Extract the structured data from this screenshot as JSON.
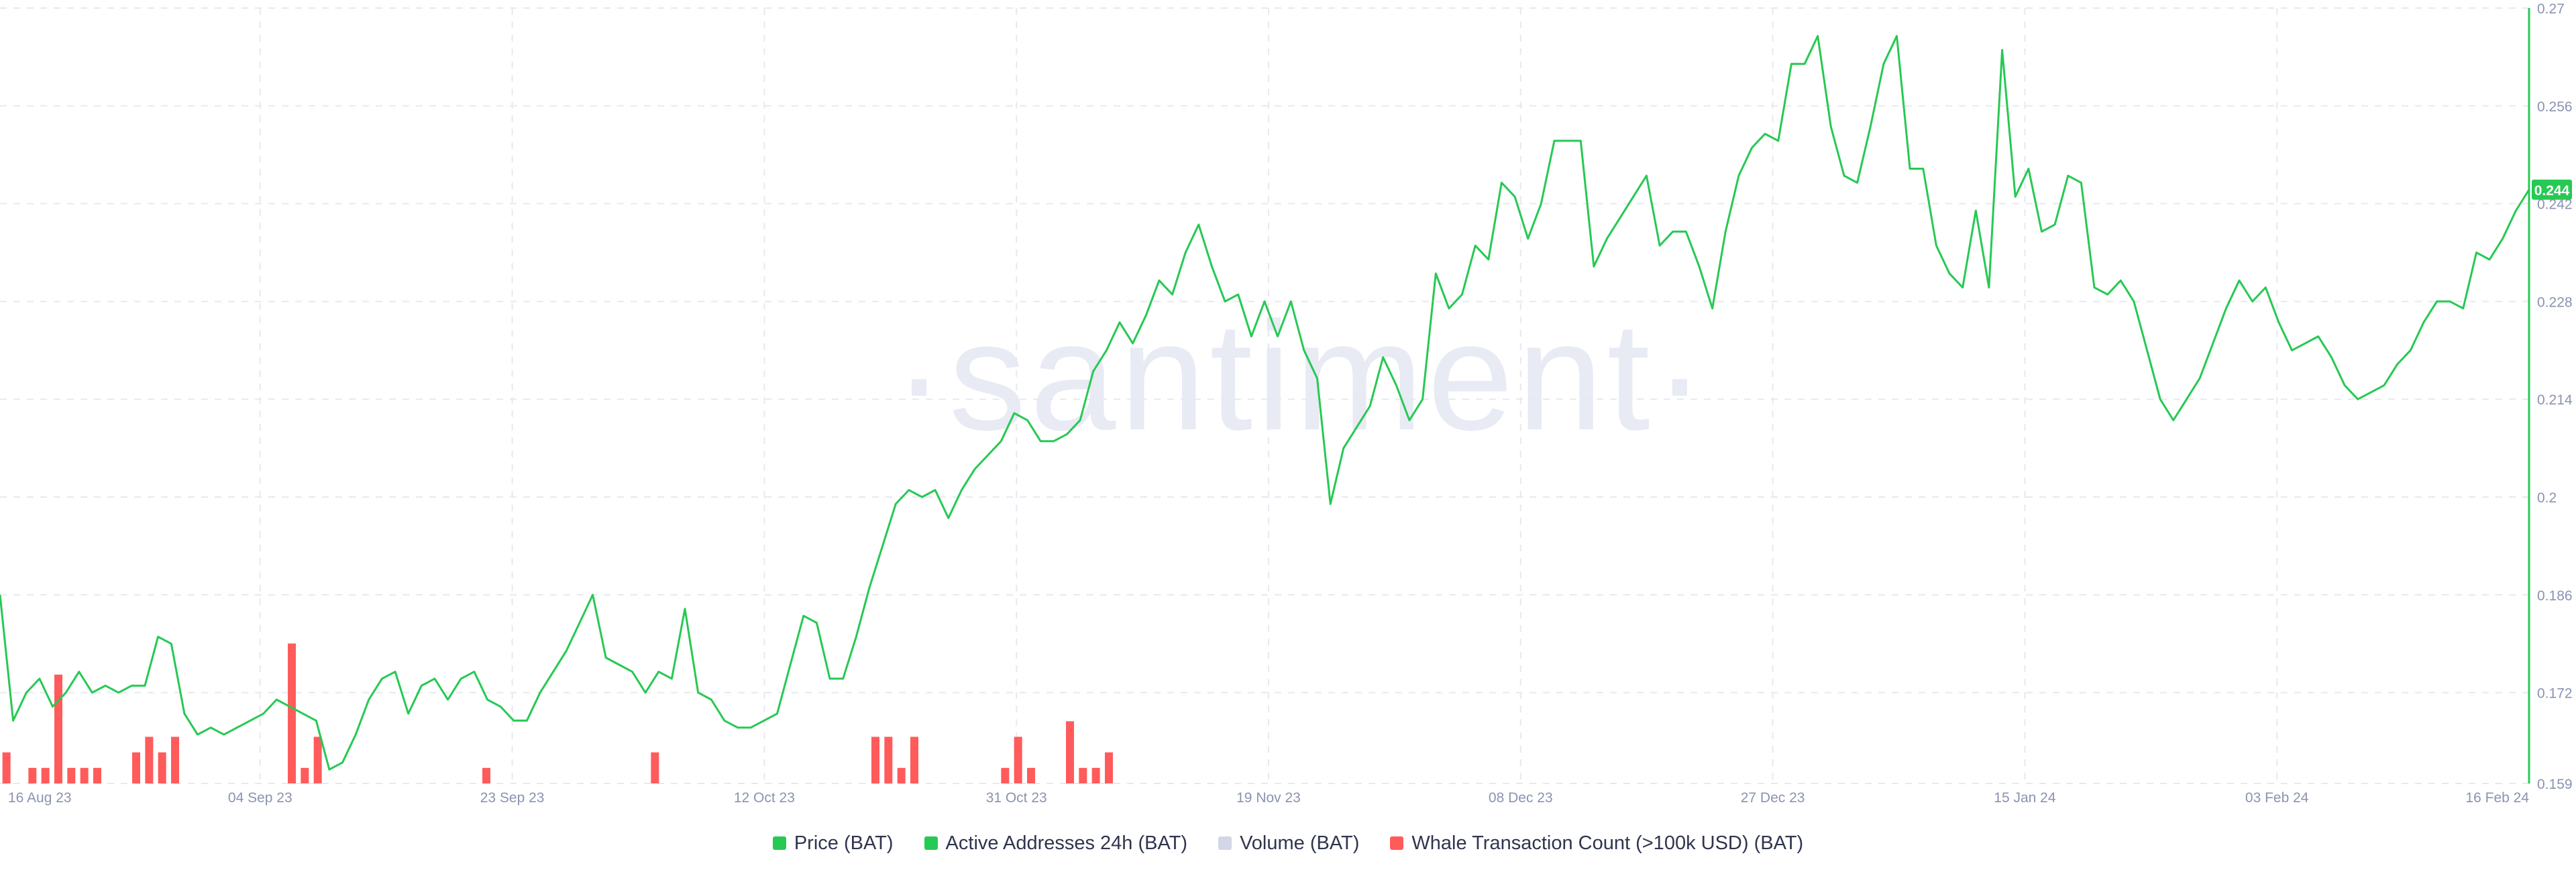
{
  "watermark": "·santiment·",
  "colors": {
    "price": "#26c953",
    "whale": "#ff5b5b",
    "volume": "#d2d6e7",
    "active": "#26c953",
    "grid": "#e7e9f0",
    "axis_text": "#8a93b0",
    "last_price_bg": "#26c953"
  },
  "legend": [
    {
      "label": "Price (BAT)",
      "color": "#26c953"
    },
    {
      "label": "Active Addresses 24h (BAT)",
      "color": "#26c953"
    },
    {
      "label": "Volume (BAT)",
      "color": "#d2d6e7"
    },
    {
      "label": "Whale Transaction Count (>100k USD) (BAT)",
      "color": "#ff5b5b"
    }
  ],
  "last_price_label": "0.244",
  "chart_data": {
    "type": "bar+line",
    "x_range": [
      "2023-08-16",
      "2024-02-16"
    ],
    "x_tick_labels": [
      "16 Aug 23",
      "04 Sep 23",
      "23 Sep 23",
      "12 Oct 23",
      "31 Oct 23",
      "19 Nov 23",
      "08 Dec 23",
      "27 Dec 23",
      "15 Jan 24",
      "03 Feb 24",
      "16 Feb 24"
    ],
    "y_right": {
      "series": "Price (BAT)",
      "range": [
        0.159,
        0.27
      ],
      "tick_labels": [
        "0.159",
        "0.172",
        "0.186",
        "0.2",
        "0.214",
        "0.228",
        "0.242",
        "0.256",
        "0.27"
      ]
    },
    "grid": true,
    "legend_position": "bottom-center",
    "series": [
      {
        "name": "Price (BAT)",
        "kind": "line",
        "axis": "right",
        "values": [
          0.186,
          0.168,
          0.172,
          0.174,
          0.17,
          0.172,
          0.175,
          0.172,
          0.173,
          0.172,
          0.173,
          0.173,
          0.18,
          0.179,
          0.169,
          0.166,
          0.167,
          0.166,
          0.167,
          0.168,
          0.169,
          0.171,
          0.17,
          0.169,
          0.168,
          0.161,
          0.162,
          0.166,
          0.171,
          0.174,
          0.175,
          0.169,
          0.173,
          0.174,
          0.171,
          0.174,
          0.175,
          0.171,
          0.17,
          0.168,
          0.168,
          0.172,
          0.175,
          0.178,
          0.182,
          0.186,
          0.177,
          0.176,
          0.175,
          0.172,
          0.175,
          0.174,
          0.184,
          0.172,
          0.171,
          0.168,
          0.167,
          0.167,
          0.168,
          0.169,
          0.176,
          0.183,
          0.182,
          0.174,
          0.174,
          0.18,
          0.187,
          0.193,
          0.199,
          0.201,
          0.2,
          0.201,
          0.197,
          0.201,
          0.204,
          0.206,
          0.208,
          0.212,
          0.211,
          0.208,
          0.208,
          0.209,
          0.211,
          0.218,
          0.221,
          0.225,
          0.222,
          0.226,
          0.231,
          0.229,
          0.235,
          0.239,
          0.233,
          0.228,
          0.229,
          0.223,
          0.228,
          0.223,
          0.228,
          0.221,
          0.217,
          0.199,
          0.207,
          0.21,
          0.213,
          0.22,
          0.216,
          0.211,
          0.214,
          0.232,
          0.227,
          0.229,
          0.236,
          0.234,
          0.245,
          0.243,
          0.237,
          0.242,
          0.251,
          0.251,
          0.251,
          0.233,
          0.237,
          0.24,
          0.243,
          0.246,
          0.236,
          0.238,
          0.238,
          0.233,
          0.227,
          0.238,
          0.246,
          0.25,
          0.252,
          0.251,
          0.262,
          0.262,
          0.266,
          0.253,
          0.246,
          0.245,
          0.253,
          0.262,
          0.266,
          0.247,
          0.247,
          0.236,
          0.232,
          0.23,
          0.241,
          0.23,
          0.264,
          0.243,
          0.247,
          0.238,
          0.239,
          0.246,
          0.245,
          0.23,
          0.229,
          0.231,
          0.228,
          0.221,
          0.214,
          0.211,
          0.214,
          0.217,
          0.222,
          0.227,
          0.231,
          0.228,
          0.23,
          0.225,
          0.221,
          0.222,
          0.223,
          0.22,
          0.216,
          0.214,
          0.215,
          0.216,
          0.219,
          0.221,
          0.225,
          0.228,
          0.228,
          0.227,
          0.235,
          0.234,
          0.237,
          0.241,
          0.244
        ]
      },
      {
        "name": "Whale Transaction Count (>100k USD) (BAT)",
        "kind": "bar",
        "axis": "left-hidden",
        "max": 49,
        "values": [
          2,
          0,
          1,
          1,
          7,
          1,
          1,
          1,
          0,
          0,
          2,
          3,
          2,
          3,
          0,
          0,
          0,
          0,
          0,
          0,
          0,
          0,
          9,
          1,
          3,
          0,
          0,
          0,
          0,
          0,
          0,
          0,
          0,
          0,
          0,
          0,
          0,
          1,
          0,
          0,
          0,
          0,
          0,
          0,
          0,
          0,
          0,
          0,
          0,
          0,
          2,
          0,
          0,
          0,
          0,
          0,
          0,
          0,
          0,
          0,
          0,
          0,
          0,
          0,
          0,
          0,
          0,
          3,
          3,
          1,
          3,
          0,
          0,
          0,
          0,
          0,
          0,
          1,
          3,
          1,
          0,
          0,
          4,
          1,
          1,
          2,
          0,
          0,
          0,
          0,
          0,
          0,
          0,
          0,
          0,
          0,
          0,
          0,
          0,
          0,
          0,
          0,
          0,
          0,
          0,
          0,
          0,
          0,
          0,
          0,
          0,
          0,
          0,
          0,
          0,
          0,
          0,
          0,
          0,
          0,
          0,
          0,
          0,
          0,
          0,
          0,
          0,
          0,
          0,
          0,
          0,
          0,
          0,
          0,
          0,
          0,
          0,
          0,
          0,
          0,
          0,
          0,
          0,
          0,
          0,
          0,
          0,
          0,
          0,
          0,
          0,
          0,
          0,
          0,
          0,
          0,
          0,
          0,
          0,
          0,
          0,
          0,
          0,
          0,
          0,
          0,
          0,
          0,
          0,
          0,
          0,
          0,
          0,
          0,
          0,
          0,
          0,
          0,
          0,
          0,
          0,
          0,
          0,
          0,
          0,
          0,
          0,
          0,
          0,
          0,
          0,
          0,
          0,
          0,
          0
        ]
      }
    ]
  }
}
